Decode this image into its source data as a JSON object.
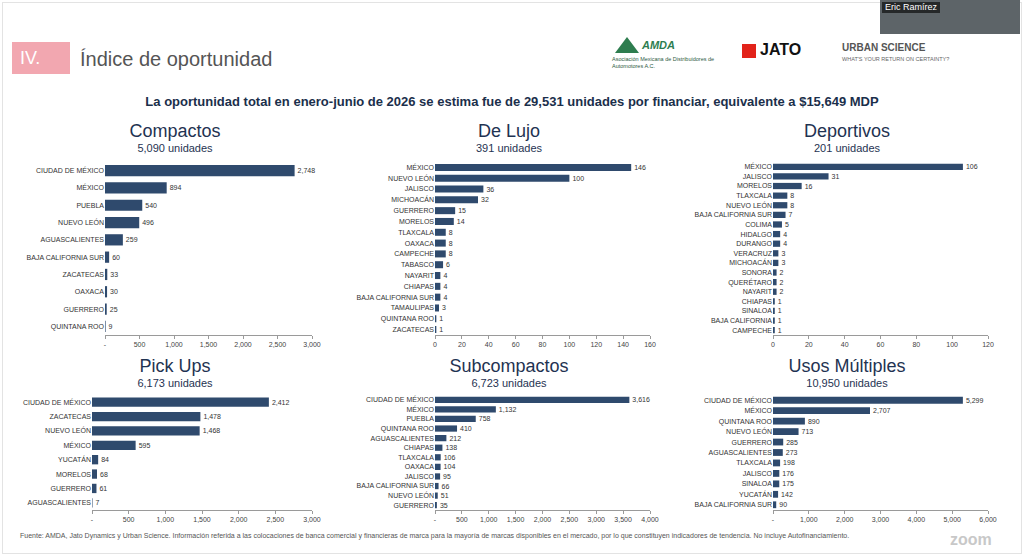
{
  "header": {
    "section": "IV.",
    "title": "Índice de oportunidad",
    "subtitle": "La oportunidad total en enero-junio de 2026 se estima fue de 29,531 unidades por financiar, equivalente a $15,649 MDP",
    "logos": {
      "amda": "AMDA",
      "amda_tagline": "Asociación Mexicana de Distribuidores de Automotores A.C.",
      "jato": "JATO",
      "urban": "URBAN SCIENCE",
      "urban_tagline": "WHAT'S YOUR RETURN ON CERTAINTY?"
    },
    "speaker": "Eric Ramírez"
  },
  "chart_data": [
    {
      "type": "bar",
      "orientation": "horizontal",
      "title": "Compactos",
      "subtitle": "5,090 unidades",
      "categories": [
        "CIUDAD DE MÉXICO",
        "MÉXICO",
        "PUEBLA",
        "NUEVO LEÓN",
        "AGUASCALIENTES",
        "BAJA CALIFORNIA SUR",
        "ZACATECAS",
        "OAXACA",
        "GUERRERO",
        "QUINTANA ROO"
      ],
      "values": [
        2748,
        894,
        540,
        496,
        259,
        60,
        33,
        30,
        25,
        9
      ],
      "value_labels": [
        "2,748",
        "894",
        "540",
        "496",
        "259",
        "60",
        "33",
        "30",
        "25",
        "9"
      ],
      "color": "#2f4a6d",
      "data_labels": true,
      "grid": false,
      "xlim": [
        0,
        3000
      ],
      "xticks": [
        {
          "value": 0,
          "label": "-"
        },
        500,
        {
          "value": 1000,
          "label": "1,000"
        },
        {
          "value": 1500,
          "label": "1,500"
        },
        {
          "value": 2000,
          "label": "2,000"
        },
        {
          "value": 2500,
          "label": "2,500"
        },
        {
          "value": 3000,
          "label": "3,000"
        }
      ]
    },
    {
      "type": "bar",
      "orientation": "horizontal",
      "title": "De Lujo",
      "subtitle": "391 unidades",
      "categories": [
        "MÉXICO",
        "NUEVO LEÓN",
        "JALISCO",
        "MICHOACÁN",
        "GUERRERO",
        "MORELOS",
        "TLAXCALA",
        "OAXACA",
        "CAMPECHE",
        "TABASCO",
        "NAYARIT",
        "CHIAPAS",
        "BAJA CALIFORNIA SUR",
        "TAMAULIPAS",
        "QUINTANA ROO",
        "ZACATECAS"
      ],
      "values": [
        146,
        100,
        36,
        32,
        15,
        14,
        8,
        8,
        8,
        6,
        4,
        4,
        4,
        3,
        1,
        1
      ],
      "value_labels": [
        "146",
        "100",
        "36",
        "32",
        "15",
        "14",
        "8",
        "8",
        "8",
        "6",
        "4",
        "4",
        "4",
        "3",
        "1",
        "1"
      ],
      "color": "#2f4a6d",
      "data_labels": true,
      "grid": false,
      "xlim": [
        0,
        160
      ],
      "xticks": [
        0,
        20,
        40,
        60,
        80,
        100,
        120,
        140,
        160
      ]
    },
    {
      "type": "bar",
      "orientation": "horizontal",
      "title": "Deportivos",
      "subtitle": "201 unidades",
      "categories": [
        "MÉXICO",
        "JALISCO",
        "MORELOS",
        "TLAXCALA",
        "NUEVO LEÓN",
        "BAJA CALIFORNIA SUR",
        "COLIMA",
        "HIDALGO",
        "DURANGO",
        "VERACRUZ",
        "MICHOACÁN",
        "SONORA",
        "QUERÉTARO",
        "NAYARIT",
        "CHIAPAS",
        "SINALOA",
        "BAJA CALIFORNIA",
        "CAMPECHE"
      ],
      "values": [
        106,
        31,
        16,
        8,
        8,
        7,
        5,
        4,
        4,
        3,
        3,
        2,
        2,
        2,
        1,
        1,
        1,
        1
      ],
      "value_labels": [
        "106",
        "31",
        "16",
        "8",
        "8",
        "7",
        "5",
        "4",
        "4",
        "3",
        "3",
        "2",
        "2",
        "2",
        "1",
        "1",
        "1",
        "1"
      ],
      "color": "#2f4a6d",
      "data_labels": true,
      "grid": false,
      "xlim": [
        0,
        120
      ],
      "xticks": [
        0,
        20,
        40,
        60,
        80,
        100,
        120
      ]
    },
    {
      "type": "bar",
      "orientation": "horizontal",
      "title": "Pick Ups",
      "subtitle": "6,173 unidades",
      "categories": [
        "CIUDAD DE MÉXICO",
        "ZACATECAS",
        "NUEVO LEÓN",
        "MÉXICO",
        "YUCATÁN",
        "MORELOS",
        "GUERRERO",
        "AGUASCALIENTES"
      ],
      "values": [
        2412,
        1478,
        1468,
        595,
        84,
        68,
        61,
        7
      ],
      "value_labels": [
        "2,412",
        "1,478",
        "1,468",
        "595",
        "84",
        "68",
        "61",
        "7"
      ],
      "color": "#2f4a6d",
      "data_labels": true,
      "grid": false,
      "xlim": [
        0,
        3000
      ],
      "xticks": [
        {
          "value": 0,
          "label": "-"
        },
        500,
        {
          "value": 1000,
          "label": "1,000"
        },
        {
          "value": 1500,
          "label": "1,500"
        },
        {
          "value": 2000,
          "label": "2,000"
        },
        {
          "value": 2500,
          "label": "2,500"
        },
        {
          "value": 3000,
          "label": "3,000"
        }
      ]
    },
    {
      "type": "bar",
      "orientation": "horizontal",
      "title": "Subcompactos",
      "subtitle": "6,723 unidades",
      "categories": [
        "CIUDAD DE MÉXICO",
        "MÉXICO",
        "PUEBLA",
        "QUINTANA ROO",
        "AGUASCALIENTES",
        "CHIAPAS",
        "TLAXCALA",
        "OAXACA",
        "JALISCO",
        "BAJA CALIFORNIA SUR",
        "NUEVO LEÓN",
        "GUERRERO"
      ],
      "values": [
        3616,
        1132,
        758,
        410,
        212,
        138,
        106,
        104,
        95,
        66,
        51,
        35
      ],
      "value_labels": [
        "3,616",
        "1,132",
        "758",
        "410",
        "212",
        "138",
        "106",
        "104",
        "95",
        "66",
        "51",
        "35"
      ],
      "color": "#2f4a6d",
      "data_labels": true,
      "grid": false,
      "xlim": [
        0,
        4000
      ],
      "xticks": [
        {
          "value": 0,
          "label": "-"
        },
        500,
        {
          "value": 1000,
          "label": "1,000"
        },
        {
          "value": 1500,
          "label": "1,500"
        },
        {
          "value": 2000,
          "label": "2,000"
        },
        {
          "value": 2500,
          "label": "2,500"
        },
        {
          "value": 3000,
          "label": "3,000"
        },
        {
          "value": 3500,
          "label": "3,500"
        },
        {
          "value": 4000,
          "label": "4,000"
        }
      ]
    },
    {
      "type": "bar",
      "orientation": "horizontal",
      "title": "Usos Múltiples",
      "subtitle": "10,950 unidades",
      "categories": [
        "CIUDAD DE MÉXICO",
        "MÉXICO",
        "QUINTANA ROO",
        "NUEVO LEÓN",
        "GUERRERO",
        "AGUASCALIENTES",
        "TLAXCALA",
        "JALISCO",
        "SINALOA",
        "YUCATÁN",
        "BAJA CALIFORNIA SUR"
      ],
      "values": [
        5299,
        2707,
        890,
        713,
        285,
        273,
        198,
        176,
        175,
        142,
        90
      ],
      "value_labels": [
        "5,299",
        "2,707",
        "890",
        "713",
        "285",
        "273",
        "198",
        "176",
        "175",
        "142",
        "90"
      ],
      "color": "#2f4a6d",
      "data_labels": true,
      "grid": false,
      "xlim": [
        0,
        6000
      ],
      "xticks": [
        {
          "value": 0,
          "label": "-"
        },
        {
          "value": 1000,
          "label": "1,000"
        },
        {
          "value": 2000,
          "label": "2,000"
        },
        {
          "value": 3000,
          "label": "3,000"
        },
        {
          "value": 4000,
          "label": "4,000"
        },
        {
          "value": 5000,
          "label": "5,000"
        },
        {
          "value": 6000,
          "label": "6,000"
        }
      ]
    }
  ],
  "footer": {
    "source": "Fuente: AMDA, Jato Dynamics y Urban Science. Información referida a las colocaciones de banca comercial y financieras de marca para la mayoría de marcas disponibles en el mercado, por lo que constituyen indicadores de tendencia. No incluye Autofinanciamiento.",
    "watermark": "zoom"
  }
}
